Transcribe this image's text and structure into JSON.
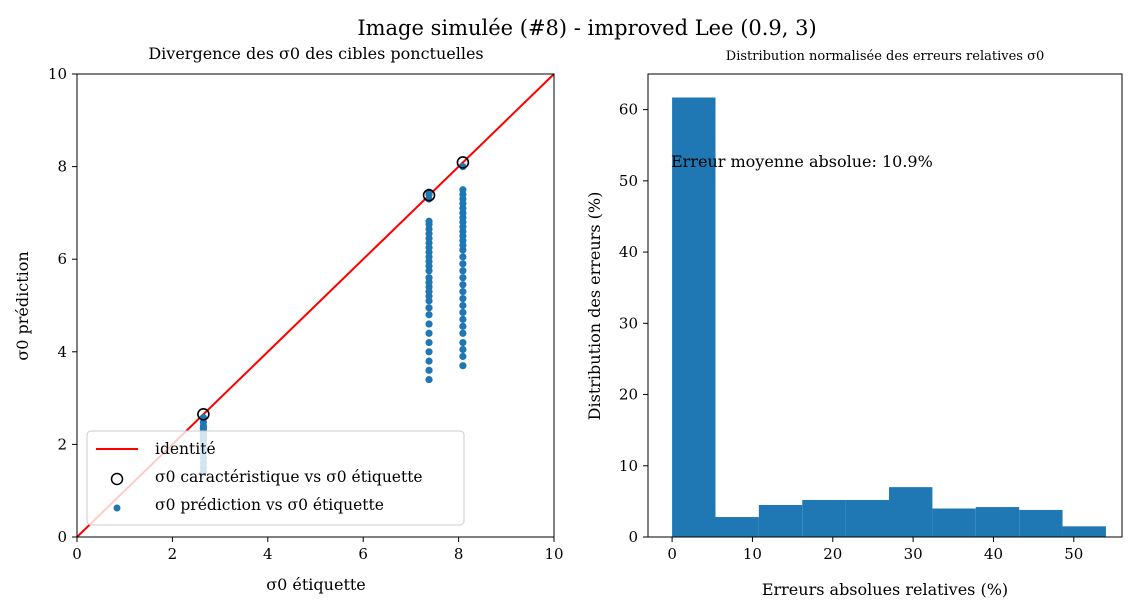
{
  "figure": {
    "suptitle": "Image simulée (#8) - improved Lee (0.9, 3)"
  },
  "chart_data": [
    {
      "type": "scatter",
      "title": "Divergence des σ0 des cibles ponctuelles",
      "xlabel": "σ0 étiquette",
      "ylabel": "σ0 prédiction",
      "xlim": [
        0,
        10
      ],
      "ylim": [
        0,
        10
      ],
      "xticks": [
        "0",
        "2",
        "4",
        "6",
        "8",
        "10"
      ],
      "yticks": [
        "0",
        "2",
        "4",
        "6",
        "8",
        "10"
      ],
      "legend_position": "lower-left",
      "colors": {
        "identity": "#ff0000",
        "prediction": "#1f77b4",
        "characteristic_edge": "#000000"
      },
      "series": [
        {
          "name": "identité",
          "kind": "line",
          "x": [
            0,
            10
          ],
          "y": [
            0,
            10
          ]
        },
        {
          "name": "σ0 caractéristique vs σ0 étiquette",
          "kind": "hollow-markers",
          "x": [
            2.65,
            7.38,
            8.09
          ],
          "y": [
            2.65,
            7.38,
            8.09
          ]
        },
        {
          "name": "σ0 prédiction vs σ0 étiquette",
          "kind": "points",
          "x": [
            2.65,
            2.65,
            2.65,
            2.65,
            2.65,
            2.65,
            2.65,
            2.65,
            2.65,
            2.65,
            2.65,
            2.65,
            2.65,
            2.65,
            2.65,
            2.65,
            7.38,
            7.38,
            7.38,
            7.38,
            7.38,
            7.38,
            7.38,
            7.38,
            7.38,
            7.38,
            7.38,
            7.38,
            7.38,
            7.38,
            7.38,
            7.38,
            7.38,
            7.38,
            7.38,
            7.38,
            7.38,
            7.38,
            7.38,
            7.38,
            7.38,
            7.38,
            7.38,
            7.38,
            7.38,
            7.38,
            8.09,
            8.09,
            8.09,
            8.09,
            8.09,
            8.09,
            8.09,
            8.09,
            8.09,
            8.09,
            8.09,
            8.09,
            8.09,
            8.09,
            8.09,
            8.09,
            8.09,
            8.09,
            8.09,
            8.09,
            8.09,
            8.09,
            8.09,
            8.09,
            8.09,
            8.09,
            8.09,
            8.09,
            8.09,
            8.09,
            8.09
          ],
          "y": [
            1.4,
            1.5,
            1.6,
            1.7,
            1.8,
            1.9,
            2.0,
            2.08,
            2.15,
            2.2,
            2.25,
            2.3,
            2.35,
            2.4,
            2.48,
            2.58,
            3.4,
            3.6,
            3.8,
            4.0,
            4.2,
            4.4,
            4.6,
            4.8,
            4.95,
            5.1,
            5.2,
            5.3,
            5.4,
            5.5,
            5.6,
            5.75,
            5.85,
            5.95,
            6.05,
            6.15,
            6.25,
            6.35,
            6.45,
            6.55,
            6.65,
            6.75,
            6.82,
            7.3,
            7.4,
            7.45,
            3.7,
            3.9,
            4.05,
            4.2,
            4.4,
            4.55,
            4.7,
            4.85,
            5.0,
            5.15,
            5.3,
            5.45,
            5.6,
            5.75,
            5.9,
            6.05,
            6.2,
            6.3,
            6.4,
            6.5,
            6.6,
            6.7,
            6.8,
            6.9,
            7.0,
            7.1,
            7.2,
            7.3,
            7.4,
            7.5,
            8.0
          ]
        }
      ]
    },
    {
      "type": "bar",
      "title": "Distribution normalisée des erreurs relatives σ0",
      "xlabel": "Erreurs absolues relatives (%)",
      "ylabel": "Distribution des erreurs (%)",
      "xlim": [
        -3,
        56
      ],
      "ylim": [
        0,
        65
      ],
      "xticks": [
        0,
        10,
        20,
        30,
        40,
        50
      ],
      "yticks": [
        0,
        10,
        20,
        30,
        40,
        50,
        60
      ],
      "bin_edges": [
        0,
        5.4,
        10.8,
        16.2,
        21.6,
        27.0,
        32.4,
        37.8,
        43.2,
        48.6,
        54.0
      ],
      "values": [
        61.7,
        2.8,
        4.5,
        5.2,
        5.2,
        7.0,
        4.0,
        4.2,
        3.8,
        1.5
      ],
      "color": "#1f77b4",
      "annotation": "Erreur moyenne absolue: 10.9%"
    }
  ]
}
